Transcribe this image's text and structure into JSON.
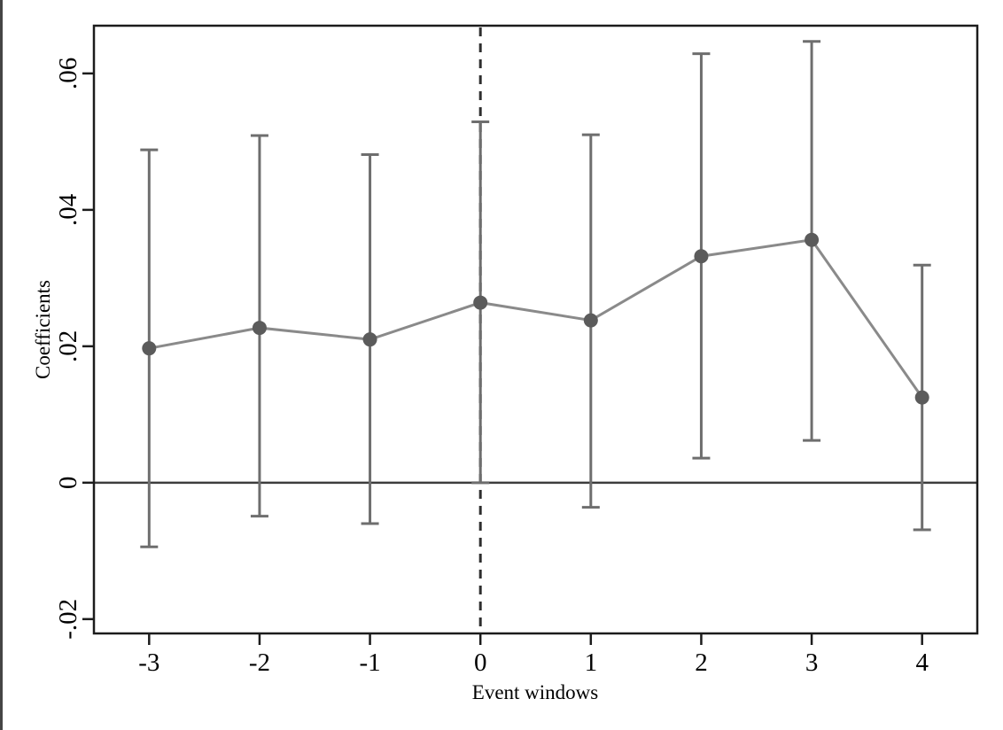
{
  "figure": {
    "kind": "event-study-plot",
    "background": "#ffffff"
  },
  "chart_data": {
    "type": "line",
    "title": "",
    "xlabel": "Event windows",
    "ylabel": "Coefficients",
    "x": [
      -3,
      -2,
      -1,
      0,
      1,
      2,
      3,
      4
    ],
    "series": [
      {
        "name": "Coefficients",
        "values": [
          0.0197,
          0.0227,
          0.021,
          0.0264,
          0.0238,
          0.0332,
          0.0356,
          0.0125
        ],
        "ci_low": [
          -0.0094,
          -0.0049,
          -0.006,
          0.0,
          -0.0036,
          0.0036,
          0.0062,
          -0.0069
        ],
        "ci_high": [
          0.0488,
          0.0509,
          0.0481,
          0.0529,
          0.051,
          0.0629,
          0.0647,
          0.0319
        ]
      }
    ],
    "x_ticks": [
      -3,
      -2,
      -1,
      0,
      1,
      2,
      3,
      4
    ],
    "x_tick_labels": [
      "-3",
      "-2",
      "-1",
      "0",
      "1",
      "2",
      "3",
      "4"
    ],
    "y_ticks": [
      -0.02,
      0,
      0.02,
      0.04,
      0.06
    ],
    "y_tick_labels": [
      "-.02",
      "0",
      ".02",
      ".04",
      ".06"
    ],
    "xlim": [
      -3.5,
      4.5
    ],
    "ylim": [
      -0.0221,
      0.067
    ],
    "grid": false,
    "legend": "none",
    "reference_lines": {
      "horizontal_zero": 0,
      "vertical_dashed_at_x": 0
    },
    "colors": {
      "frame": "#1c1c1c",
      "tick": "#1c1c1c",
      "zero_line": "#3d3d3d",
      "dashed_line": "#2e2e2e",
      "error_bar": "#6e6e6e",
      "series_line": "#8a8a8a",
      "marker": "#5b5b5b"
    }
  }
}
